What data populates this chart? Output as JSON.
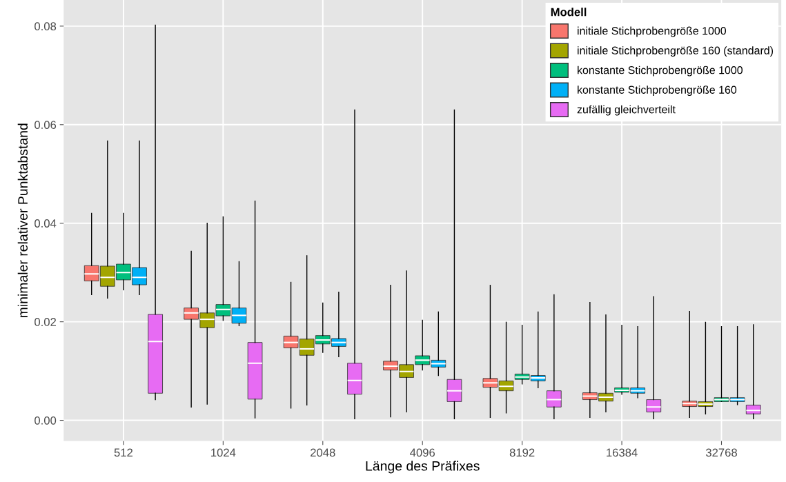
{
  "chart_data": {
    "type": "box",
    "xlabel": "Länge des Präfixes",
    "ylabel": "minimaler relativer Punktabstand",
    "legend_title": "Modell",
    "legend": "top right",
    "grid": true,
    "categories": [
      "512",
      "1024",
      "2048",
      "4096",
      "8192",
      "16384",
      "32768"
    ],
    "ylim": [
      -0.0042,
      0.0853
    ],
    "yticks": [
      {
        "value": 0,
        "label": "0.00"
      },
      {
        "value": 0.02,
        "label": "0.02"
      },
      {
        "value": 0.04,
        "label": "0.04"
      },
      {
        "value": 0.06,
        "label": "0.06"
      },
      {
        "value": 0.08,
        "label": "0.08"
      }
    ],
    "series": [
      {
        "name": "initiale Stichprobengröße 1000",
        "color": "#f8766d",
        "boxes": [
          {
            "low": 0.0255,
            "q1": 0.0283,
            "median": 0.0297,
            "q3": 0.0314,
            "high": 0.042
          },
          {
            "low": 0.0027,
            "q1": 0.0205,
            "median": 0.0218,
            "q3": 0.0228,
            "high": 0.0343
          },
          {
            "low": 0.0025,
            "q1": 0.0147,
            "median": 0.0158,
            "q3": 0.0171,
            "high": 0.028
          },
          {
            "low": 0.0007,
            "q1": 0.0102,
            "median": 0.011,
            "q3": 0.012,
            "high": 0.0274
          },
          {
            "low": 0.0006,
            "q1": 0.0067,
            "median": 0.0076,
            "q3": 0.0085,
            "high": 0.0274
          },
          {
            "low": 0.0006,
            "q1": 0.0042,
            "median": 0.0049,
            "q3": 0.0056,
            "high": 0.0239
          },
          {
            "low": 0.0006,
            "q1": 0.0028,
            "median": 0.0034,
            "q3": 0.0039,
            "high": 0.0221
          }
        ]
      },
      {
        "name": "initiale Stichprobengröße 160 (standard)",
        "color": "#a3a500",
        "boxes": [
          {
            "low": 0.0248,
            "q1": 0.0272,
            "median": 0.029,
            "q3": 0.0313,
            "high": 0.0567
          },
          {
            "low": 0.0033,
            "q1": 0.0188,
            "median": 0.0205,
            "q3": 0.0218,
            "high": 0.04
          },
          {
            "low": 0.0031,
            "q1": 0.0132,
            "median": 0.0145,
            "q3": 0.0165,
            "high": 0.0334
          },
          {
            "low": 0.0017,
            "q1": 0.0087,
            "median": 0.0099,
            "q3": 0.0113,
            "high": 0.0303
          },
          {
            "low": 0.0015,
            "q1": 0.006,
            "median": 0.0069,
            "q3": 0.008,
            "high": 0.0199
          },
          {
            "low": 0.0017,
            "q1": 0.0039,
            "median": 0.0047,
            "q3": 0.0055,
            "high": 0.0214
          },
          {
            "low": 0.0013,
            "q1": 0.0028,
            "median": 0.0033,
            "q3": 0.0038,
            "high": 0.0199
          }
        ]
      },
      {
        "name": "konstante Stichprobengröße 1000",
        "color": "#00bf7d",
        "boxes": [
          {
            "low": 0.0265,
            "q1": 0.0285,
            "median": 0.03,
            "q3": 0.0317,
            "high": 0.042
          },
          {
            "low": 0.0203,
            "q1": 0.0212,
            "median": 0.0225,
            "q3": 0.0235,
            "high": 0.0413
          },
          {
            "low": 0.0138,
            "q1": 0.0155,
            "median": 0.0163,
            "q3": 0.0172,
            "high": 0.0238
          },
          {
            "low": 0.0102,
            "q1": 0.0113,
            "median": 0.0122,
            "q3": 0.0131,
            "high": 0.0203
          },
          {
            "low": 0.0074,
            "q1": 0.0083,
            "median": 0.0088,
            "q3": 0.0094,
            "high": 0.0193
          },
          {
            "low": 0.0053,
            "q1": 0.0057,
            "median": 0.0061,
            "q3": 0.0066,
            "high": 0.0193
          },
          {
            "low": 0.0038,
            "q1": 0.0038,
            "median": 0.0042,
            "q3": 0.0046,
            "high": 0.019
          }
        ]
      },
      {
        "name": "konstante Stichprobengröße 160",
        "color": "#00b0f6",
        "boxes": [
          {
            "low": 0.0255,
            "q1": 0.0275,
            "median": 0.029,
            "q3": 0.031,
            "high": 0.0567
          },
          {
            "low": 0.0192,
            "q1": 0.0197,
            "median": 0.0213,
            "q3": 0.0228,
            "high": 0.0322
          },
          {
            "low": 0.0129,
            "q1": 0.015,
            "median": 0.0158,
            "q3": 0.0166,
            "high": 0.026
          },
          {
            "low": 0.0091,
            "q1": 0.0108,
            "median": 0.0115,
            "q3": 0.0122,
            "high": 0.022
          },
          {
            "low": 0.0066,
            "q1": 0.008,
            "median": 0.0086,
            "q3": 0.0091,
            "high": 0.022
          },
          {
            "low": 0.0046,
            "q1": 0.0055,
            "median": 0.006,
            "q3": 0.0066,
            "high": 0.019
          },
          {
            "low": 0.0032,
            "q1": 0.0038,
            "median": 0.0042,
            "q3": 0.0046,
            "high": 0.019
          }
        ]
      },
      {
        "name": "zufällig gleichverteilt",
        "color": "#e76bf3",
        "boxes": [
          {
            "low": 0.0042,
            "q1": 0.0055,
            "median": 0.016,
            "q3": 0.0215,
            "high": 0.0802
          },
          {
            "low": 0.0005,
            "q1": 0.0043,
            "median": 0.0116,
            "q3": 0.0158,
            "high": 0.0445
          },
          {
            "low": 0.0003,
            "q1": 0.0053,
            "median": 0.0081,
            "q3": 0.0116,
            "high": 0.063
          },
          {
            "low": 0.0003,
            "q1": 0.0038,
            "median": 0.006,
            "q3": 0.0083,
            "high": 0.063
          },
          {
            "low": 0.0003,
            "q1": 0.0027,
            "median": 0.0042,
            "q3": 0.006,
            "high": 0.0255
          },
          {
            "low": 0.0003,
            "q1": 0.0017,
            "median": 0.0027,
            "q3": 0.0042,
            "high": 0.0251
          },
          {
            "low": 0.0003,
            "q1": 0.0013,
            "median": 0.002,
            "q3": 0.0031,
            "high": 0.0194
          }
        ]
      }
    ]
  }
}
